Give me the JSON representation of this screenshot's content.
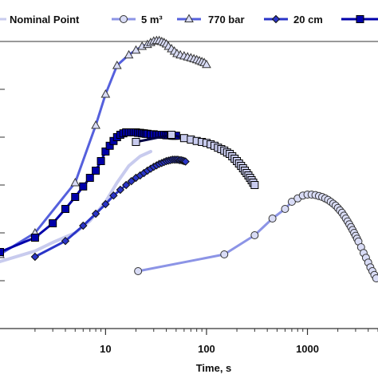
{
  "chart_data": {
    "type": "line",
    "xscale": "log",
    "xlim": [
      0.9,
      5000
    ],
    "ylim": [
      0,
      6
    ],
    "grid": false,
    "legend_position": "top",
    "xlabel": "Time, s",
    "ylabel": "",
    "xticks": [
      {
        "value": 10,
        "label": "10"
      },
      {
        "value": 100,
        "label": "100"
      },
      {
        "value": 1000,
        "label": "1000"
      }
    ],
    "series": [
      {
        "name": "Nominal Point",
        "color": "#c8cbee",
        "marker": "none",
        "x": [
          0.9,
          2,
          3,
          5,
          7,
          10,
          13,
          17,
          22,
          28
        ],
        "y": [
          1.4,
          1.62,
          1.8,
          2.0,
          2.25,
          2.65,
          3.05,
          3.4,
          3.6,
          3.7
        ]
      },
      {
        "name": "5 m³",
        "color": "#8c94e6",
        "marker": "circle",
        "x": [
          21,
          150,
          300,
          450,
          600,
          700,
          800,
          900,
          1000,
          1100,
          1200,
          1300,
          1400,
          1500,
          1600,
          1700,
          1800,
          1900,
          2000,
          2100,
          2200,
          2300,
          2400,
          2500,
          2600,
          2700,
          2800,
          2900,
          3000,
          3100,
          3200,
          3400,
          3600,
          3800,
          4000,
          4200,
          4400,
          4600,
          4800
        ],
        "y": [
          1.2,
          1.55,
          1.95,
          2.3,
          2.5,
          2.65,
          2.72,
          2.78,
          2.8,
          2.8,
          2.79,
          2.77,
          2.75,
          2.72,
          2.69,
          2.65,
          2.61,
          2.57,
          2.52,
          2.47,
          2.42,
          2.36,
          2.3,
          2.24,
          2.18,
          2.12,
          2.06,
          2.0,
          1.94,
          1.88,
          1.82,
          1.7,
          1.58,
          1.48,
          1.38,
          1.28,
          1.2,
          1.12,
          1.05
        ]
      },
      {
        "name": "770 bar",
        "color": "#5560dd",
        "marker": "triangle",
        "x": [
          0.9,
          2,
          5,
          8,
          10,
          13,
          17,
          20,
          23,
          26,
          28,
          30,
          32,
          34,
          36,
          38,
          40,
          42,
          45,
          48,
          51,
          55,
          60,
          65,
          70,
          75,
          80,
          85,
          90,
          95,
          100
        ],
        "y": [
          1.55,
          2.0,
          3.05,
          4.25,
          4.9,
          5.5,
          5.72,
          5.82,
          5.9,
          5.94,
          5.98,
          6.01,
          6.02,
          6.02,
          6.0,
          5.98,
          5.95,
          5.9,
          5.85,
          5.8,
          5.75,
          5.72,
          5.7,
          5.68,
          5.66,
          5.64,
          5.62,
          5.6,
          5.58,
          5.56,
          5.52
        ]
      },
      {
        "name": "20 cm",
        "color": "#2a35c8",
        "marker": "diamond",
        "x": [
          2,
          4,
          6,
          8,
          10,
          12,
          14,
          16,
          18,
          20,
          22,
          24,
          26,
          28,
          30,
          32,
          34,
          36,
          38,
          40,
          42,
          44,
          46,
          48,
          50,
          52,
          54,
          56,
          58,
          60,
          62
        ],
        "y": [
          1.5,
          1.83,
          2.15,
          2.4,
          2.6,
          2.78,
          2.9,
          3.0,
          3.08,
          3.15,
          3.2,
          3.25,
          3.3,
          3.34,
          3.38,
          3.41,
          3.44,
          3.46,
          3.48,
          3.5,
          3.51,
          3.52,
          3.53,
          3.53,
          3.53,
          3.53,
          3.52,
          3.52,
          3.51,
          3.5,
          3.49
        ]
      },
      {
        "name": "",
        "color": "#0000aa",
        "marker": "square",
        "x": [
          0.9,
          2,
          3,
          4,
          5,
          6,
          7,
          8,
          9,
          10,
          11,
          12,
          13,
          14,
          15,
          16,
          17,
          18,
          19,
          20,
          21,
          22,
          23,
          24,
          25,
          26,
          28,
          30,
          32,
          34,
          36,
          38,
          40,
          42,
          44,
          46,
          48,
          50
        ],
        "y": [
          1.6,
          1.9,
          2.2,
          2.5,
          2.75,
          2.97,
          3.15,
          3.3,
          3.5,
          3.7,
          3.82,
          3.92,
          4.0,
          4.05,
          4.08,
          4.1,
          4.1,
          4.1,
          4.1,
          4.1,
          4.09,
          4.09,
          4.08,
          4.08,
          4.07,
          4.07,
          4.06,
          4.06,
          4.05,
          4.05,
          4.05,
          4.05,
          4.04,
          4.04,
          4.04,
          4.03,
          4.03,
          4.03
        ]
      },
      {
        "name": "",
        "color": "#000044",
        "marker": "square-light",
        "x": [
          20,
          45,
          60,
          70,
          80,
          90,
          100,
          110,
          120,
          130,
          140,
          150,
          160,
          170,
          180,
          190,
          200,
          210,
          220,
          230,
          240,
          250,
          260,
          270,
          280,
          290,
          300
        ],
        "y": [
          3.9,
          4.05,
          3.98,
          3.95,
          3.92,
          3.9,
          3.88,
          3.85,
          3.82,
          3.78,
          3.75,
          3.72,
          3.68,
          3.65,
          3.6,
          3.55,
          3.5,
          3.45,
          3.4,
          3.35,
          3.3,
          3.25,
          3.2,
          3.15,
          3.1,
          3.05,
          3.0
        ]
      }
    ]
  },
  "legend": {
    "items": [
      {
        "label": "Nominal Point",
        "color": "#c8cbee",
        "marker": "none"
      },
      {
        "label": "5 m³",
        "color": "#8c94e6",
        "marker": "circle"
      },
      {
        "label": "770 bar",
        "color": "#5560dd",
        "marker": "triangle"
      },
      {
        "label": "20 cm",
        "color": "#2a35c8",
        "marker": "diamond"
      },
      {
        "label": "",
        "color": "#0000aa",
        "marker": "square"
      }
    ]
  }
}
